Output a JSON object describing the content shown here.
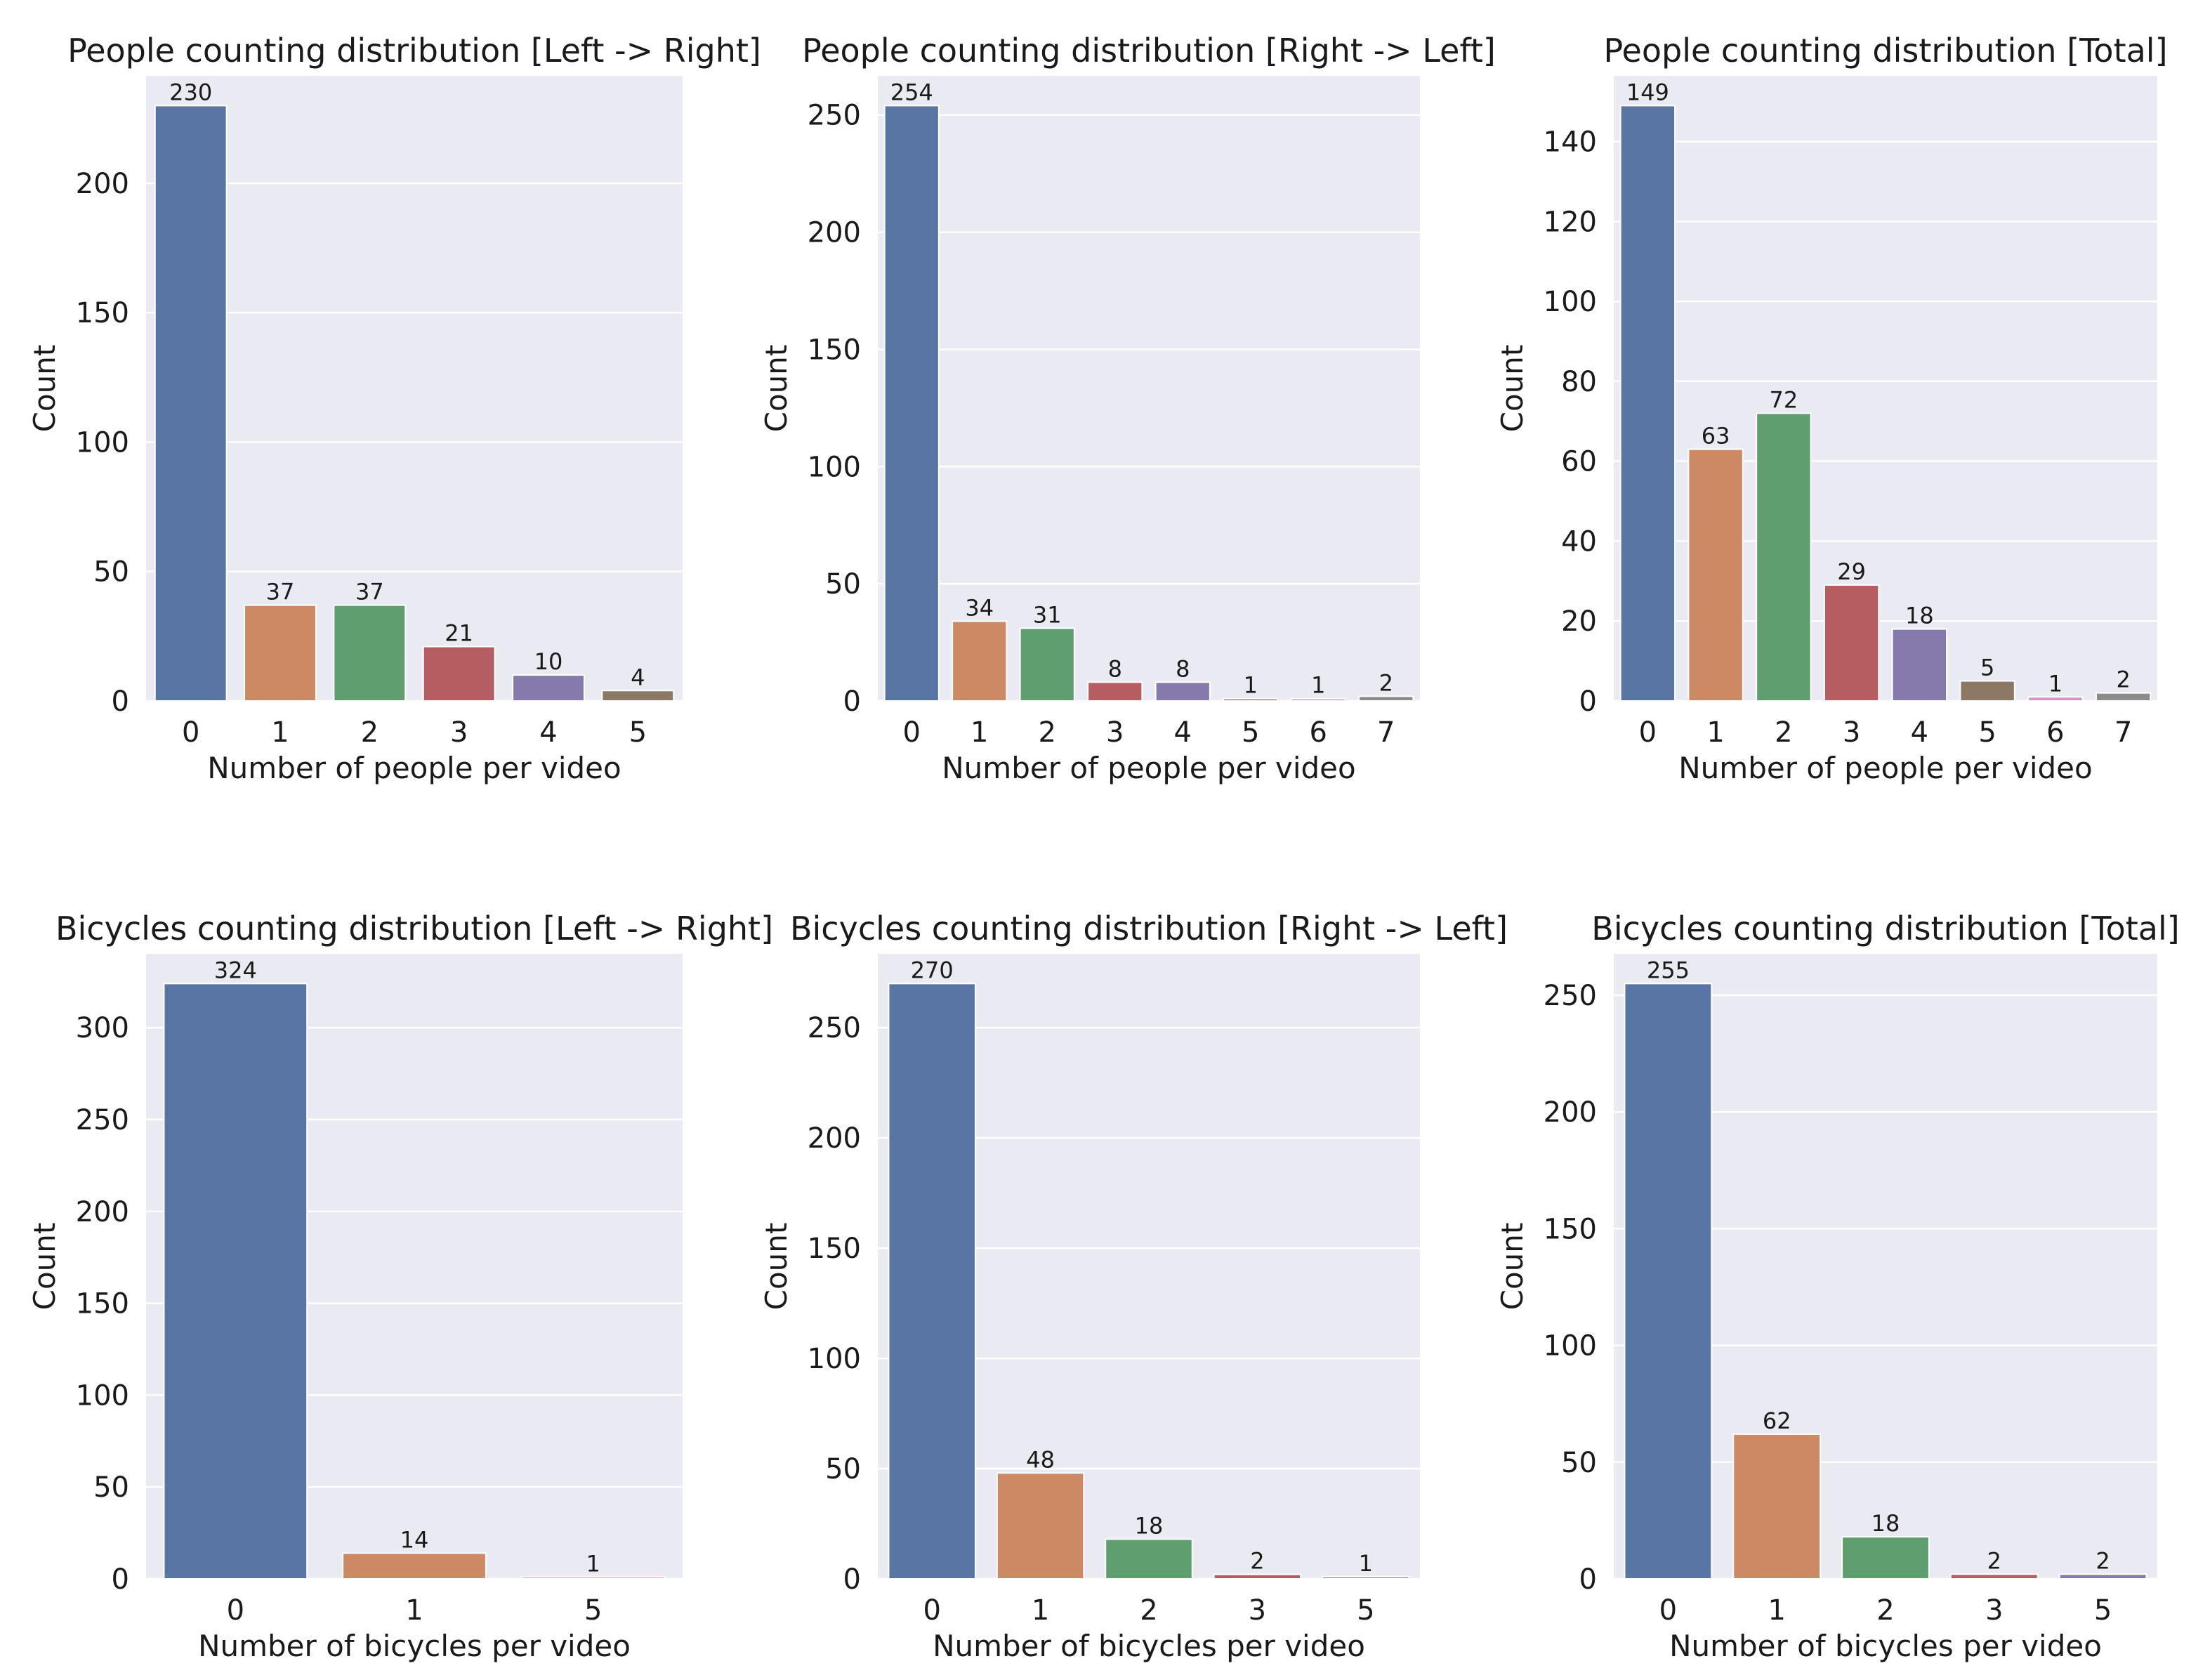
{
  "chart_data": [
    {
      "type": "bar",
      "title": "People counting distribution [Left -> Right]",
      "xlabel": "Number of people per video",
      "ylabel": "Count",
      "categories": [
        "0",
        "1",
        "2",
        "3",
        "4",
        "5"
      ],
      "values": [
        230,
        37,
        37,
        21,
        10,
        4
      ],
      "ylim": [
        0,
        241.5
      ],
      "yticks": [
        0,
        50,
        100,
        150,
        200
      ],
      "grid": true
    },
    {
      "type": "bar",
      "title": "People counting distribution [Right -> Left]",
      "xlabel": "Number of people per video",
      "ylabel": "Count",
      "categories": [
        "0",
        "1",
        "2",
        "3",
        "4",
        "5",
        "6",
        "7"
      ],
      "values": [
        254,
        34,
        31,
        8,
        8,
        1,
        1,
        2
      ],
      "ylim": [
        0,
        266.7
      ],
      "yticks": [
        0,
        50,
        100,
        150,
        200,
        250
      ],
      "grid": true
    },
    {
      "type": "bar",
      "title": "People counting distribution [Total]",
      "xlabel": "Number of people per video",
      "ylabel": "Count",
      "categories": [
        "0",
        "1",
        "2",
        "3",
        "4",
        "5",
        "6",
        "7"
      ],
      "values": [
        149,
        63,
        72,
        29,
        18,
        5,
        1,
        2
      ],
      "ylim": [
        0,
        156.45
      ],
      "yticks": [
        0,
        20,
        40,
        60,
        80,
        100,
        120,
        140
      ],
      "grid": true
    },
    {
      "type": "bar",
      "title": "Bicycles counting distribution [Left -> Right]",
      "xlabel": "Number of bicycles per video",
      "ylabel": "Count",
      "categories": [
        "0",
        "1",
        "5"
      ],
      "values": [
        324,
        14,
        1
      ],
      "ylim": [
        0,
        340.2
      ],
      "yticks": [
        0,
        50,
        100,
        150,
        200,
        250,
        300
      ],
      "grid": true
    },
    {
      "type": "bar",
      "title": "Bicycles counting distribution [Right -> Left]",
      "xlabel": "Number of bicycles per video",
      "ylabel": "Count",
      "categories": [
        "0",
        "1",
        "2",
        "3",
        "5"
      ],
      "values": [
        270,
        48,
        18,
        2,
        1
      ],
      "ylim": [
        0,
        283.5
      ],
      "yticks": [
        0,
        50,
        100,
        150,
        200,
        250
      ],
      "grid": true
    },
    {
      "type": "bar",
      "title": "Bicycles counting distribution [Total]",
      "xlabel": "Number of bicycles per video",
      "ylabel": "Count",
      "categories": [
        "0",
        "1",
        "2",
        "3",
        "5"
      ],
      "values": [
        255,
        62,
        18,
        2,
        2
      ],
      "ylim": [
        0,
        267.75
      ],
      "yticks": [
        0,
        50,
        100,
        150,
        200,
        250
      ],
      "grid": true
    }
  ],
  "colors": {
    "background": "#eaeaf2",
    "grid": "#ffffff",
    "palette": [
      "#5875a4",
      "#cc8963",
      "#5f9e6e",
      "#b55d60",
      "#857aab",
      "#8d7866",
      "#d095bf",
      "#8c8c8c"
    ]
  }
}
